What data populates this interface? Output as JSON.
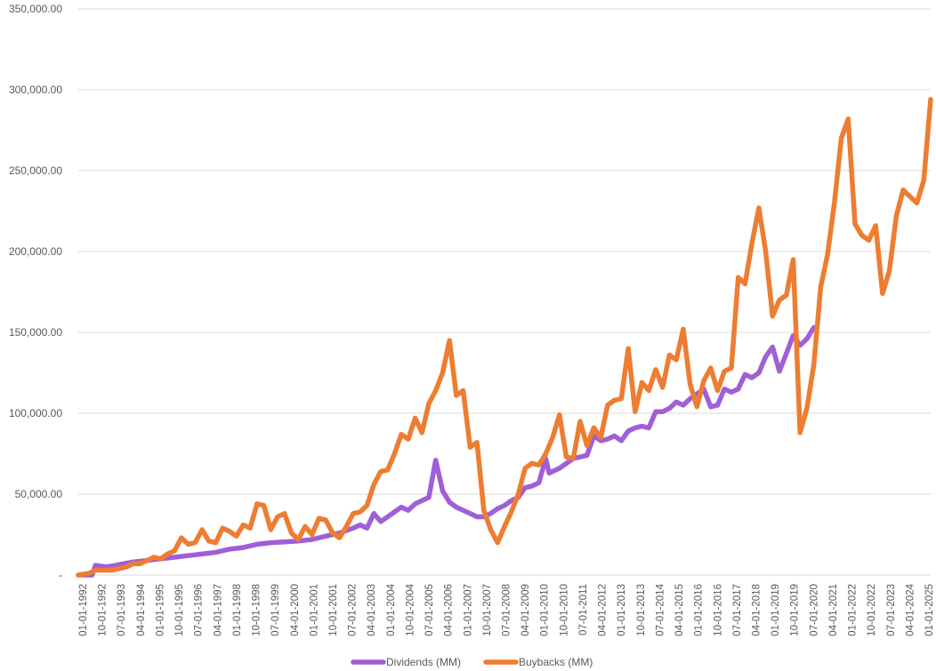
{
  "chart_data": {
    "type": "line",
    "title": "",
    "xlabel": "",
    "ylabel": "",
    "ylim": [
      0,
      350000
    ],
    "y_ticks": [
      "-",
      "50,000.00",
      "100,000.00",
      "150,000.00",
      "200,000.00",
      "250,000.00",
      "300,000.00",
      "350,000.00"
    ],
    "y_tick_values": [
      0,
      50000,
      100000,
      150000,
      200000,
      250000,
      300000,
      350000
    ],
    "grid": "horizontal",
    "legend_position": "bottom",
    "x_ticks": [
      "01-01-1992",
      "10-01-1992",
      "07-01-1993",
      "04-01-1994",
      "01-01-1995",
      "10-01-1995",
      "07-01-1996",
      "04-01-1997",
      "01-01-1998",
      "10-01-1998",
      "07-01-1999",
      "04-01-2000",
      "01-01-2001",
      "10-01-2001",
      "07-01-2002",
      "04-01-2003",
      "01-01-2004",
      "10-01-2004",
      "07-01-2005",
      "04-01-2006",
      "01-01-2007",
      "10-01-2007",
      "07-01-2008",
      "04-01-2009",
      "01-01-2010",
      "10-01-2010",
      "07-01-2011",
      "04-01-2012",
      "01-01-2013",
      "10-01-2013",
      "07-01-2014",
      "04-01-2015",
      "01-01-2016",
      "10-01-2016",
      "07-01-2017",
      "04-01-2018",
      "01-01-2019",
      "10-01-2019",
      "07-01-2020",
      "04-01-2021",
      "01-01-2022",
      "10-01-2022",
      "07-01-2023",
      "04-01-2024",
      "01-01-2025"
    ],
    "series": [
      {
        "name": "Dividends (MM)",
        "color": "#a05fd6",
        "points": [
          [
            0,
            0
          ],
          [
            2,
            0
          ],
          [
            4,
            0
          ],
          [
            5,
            6000
          ],
          [
            8,
            5000
          ],
          [
            11,
            6000
          ],
          [
            13,
            7000
          ],
          [
            16,
            8000
          ],
          [
            20,
            9000
          ],
          [
            22,
            9500
          ],
          [
            24,
            10000
          ],
          [
            28,
            11000
          ],
          [
            32,
            12000
          ],
          [
            36,
            13000
          ],
          [
            40,
            14000
          ],
          [
            44,
            16000
          ],
          [
            48,
            17000
          ],
          [
            52,
            19000
          ],
          [
            56,
            20000
          ],
          [
            60,
            20500
          ],
          [
            64,
            21000
          ],
          [
            68,
            22000
          ],
          [
            72,
            24000
          ],
          [
            76,
            26000
          ],
          [
            80,
            29000
          ],
          [
            82,
            31000
          ],
          [
            84,
            29000
          ],
          [
            86,
            38000
          ],
          [
            88,
            33000
          ],
          [
            90,
            36000
          ],
          [
            92,
            39000
          ],
          [
            94,
            42000
          ],
          [
            96,
            40000
          ],
          [
            98,
            44000
          ],
          [
            100,
            46000
          ],
          [
            102,
            48000
          ],
          [
            104,
            71000
          ],
          [
            106,
            52000
          ],
          [
            108,
            45000
          ],
          [
            110,
            42000
          ],
          [
            112,
            40000
          ],
          [
            114,
            38000
          ],
          [
            116,
            36000
          ],
          [
            118,
            36000
          ],
          [
            120,
            38000
          ],
          [
            122,
            41000
          ],
          [
            124,
            43000
          ],
          [
            126,
            46000
          ],
          [
            128,
            48000
          ],
          [
            130,
            54000
          ],
          [
            132,
            55000
          ],
          [
            134,
            57000
          ],
          [
            136,
            72000
          ],
          [
            137,
            63000
          ],
          [
            140,
            66000
          ],
          [
            144,
            72000
          ],
          [
            148,
            74000
          ],
          [
            150,
            86000
          ],
          [
            152,
            83000
          ],
          [
            154,
            84000
          ],
          [
            156,
            86000
          ],
          [
            158,
            83000
          ],
          [
            160,
            89000
          ],
          [
            162,
            91000
          ],
          [
            164,
            92000
          ],
          [
            166,
            91000
          ],
          [
            168,
            101000
          ],
          [
            170,
            101000
          ],
          [
            172,
            103000
          ],
          [
            174,
            107000
          ],
          [
            176,
            105000
          ],
          [
            178,
            109000
          ],
          [
            180,
            112000
          ],
          [
            182,
            115000
          ],
          [
            184,
            104000
          ],
          [
            186,
            105000
          ],
          [
            188,
            115000
          ],
          [
            190,
            113000
          ],
          [
            192,
            115000
          ],
          [
            194,
            124000
          ],
          [
            196,
            122000
          ],
          [
            198,
            125000
          ],
          [
            200,
            135000
          ],
          [
            202,
            141000
          ],
          [
            204,
            126000
          ],
          [
            206,
            137000
          ],
          [
            208,
            148000
          ],
          [
            210,
            142000
          ],
          [
            212,
            146000
          ],
          [
            214,
            153000
          ]
        ]
      },
      {
        "name": "Buybacks (MM)",
        "color": "#ed7d31",
        "points": [
          [
            0,
            0
          ],
          [
            3,
            1000
          ],
          [
            5,
            3000
          ],
          [
            7,
            3000
          ],
          [
            10,
            3000
          ],
          [
            12,
            4000
          ],
          [
            14,
            5000
          ],
          [
            16,
            7000
          ],
          [
            18,
            7000
          ],
          [
            20,
            9000
          ],
          [
            22,
            11000
          ],
          [
            24,
            10000
          ],
          [
            26,
            13000
          ],
          [
            28,
            15000
          ],
          [
            30,
            23000
          ],
          [
            32,
            19000
          ],
          [
            34,
            20000
          ],
          [
            36,
            28000
          ],
          [
            38,
            21000
          ],
          [
            40,
            20000
          ],
          [
            42,
            29000
          ],
          [
            44,
            27000
          ],
          [
            46,
            24000
          ],
          [
            48,
            31000
          ],
          [
            50,
            29000
          ],
          [
            52,
            44000
          ],
          [
            54,
            43000
          ],
          [
            56,
            28000
          ],
          [
            58,
            36000
          ],
          [
            60,
            38000
          ],
          [
            62,
            26000
          ],
          [
            64,
            22000
          ],
          [
            66,
            30000
          ],
          [
            68,
            25000
          ],
          [
            70,
            35000
          ],
          [
            72,
            34000
          ],
          [
            74,
            26000
          ],
          [
            76,
            23000
          ],
          [
            78,
            30000
          ],
          [
            80,
            38000
          ],
          [
            82,
            39000
          ],
          [
            84,
            43000
          ],
          [
            86,
            56000
          ],
          [
            88,
            64000
          ],
          [
            90,
            65000
          ],
          [
            92,
            75000
          ],
          [
            94,
            87000
          ],
          [
            96,
            84000
          ],
          [
            98,
            97000
          ],
          [
            100,
            88000
          ],
          [
            102,
            106000
          ],
          [
            104,
            114000
          ],
          [
            106,
            125000
          ],
          [
            108,
            145000
          ],
          [
            110,
            111000
          ],
          [
            112,
            114000
          ],
          [
            114,
            79000
          ],
          [
            116,
            82000
          ],
          [
            118,
            40000
          ],
          [
            120,
            28000
          ],
          [
            122,
            20000
          ],
          [
            124,
            30000
          ],
          [
            126,
            39000
          ],
          [
            128,
            50000
          ],
          [
            130,
            66000
          ],
          [
            132,
            69000
          ],
          [
            134,
            68000
          ],
          [
            136,
            75000
          ],
          [
            138,
            85000
          ],
          [
            140,
            99000
          ],
          [
            142,
            73000
          ],
          [
            144,
            72000
          ],
          [
            146,
            95000
          ],
          [
            148,
            80000
          ],
          [
            150,
            91000
          ],
          [
            152,
            85000
          ],
          [
            154,
            105000
          ],
          [
            156,
            108000
          ],
          [
            158,
            109000
          ],
          [
            160,
            140000
          ],
          [
            162,
            101000
          ],
          [
            164,
            119000
          ],
          [
            166,
            114000
          ],
          [
            168,
            127000
          ],
          [
            170,
            116000
          ],
          [
            172,
            136000
          ],
          [
            174,
            133000
          ],
          [
            176,
            152000
          ],
          [
            178,
            118000
          ],
          [
            180,
            104000
          ],
          [
            182,
            120000
          ],
          [
            184,
            128000
          ],
          [
            186,
            114000
          ],
          [
            188,
            126000
          ],
          [
            190,
            128000
          ],
          [
            192,
            184000
          ],
          [
            194,
            180000
          ],
          [
            196,
            205000
          ],
          [
            198,
            227000
          ],
          [
            200,
            200000
          ],
          [
            202,
            160000
          ],
          [
            204,
            170000
          ],
          [
            206,
            173000
          ],
          [
            208,
            195000
          ],
          [
            210,
            88000
          ],
          [
            212,
            103000
          ],
          [
            214,
            130000
          ],
          [
            216,
            178000
          ],
          [
            218,
            198000
          ],
          [
            220,
            230000
          ],
          [
            222,
            270000
          ],
          [
            224,
            282000
          ],
          [
            226,
            217000
          ],
          [
            228,
            210000
          ],
          [
            230,
            207000
          ],
          [
            232,
            216000
          ],
          [
            234,
            174000
          ],
          [
            236,
            188000
          ],
          [
            238,
            222000
          ],
          [
            240,
            238000
          ],
          [
            242,
            234000
          ],
          [
            244,
            230000
          ],
          [
            246,
            244000
          ],
          [
            248,
            294000
          ]
        ]
      }
    ]
  }
}
